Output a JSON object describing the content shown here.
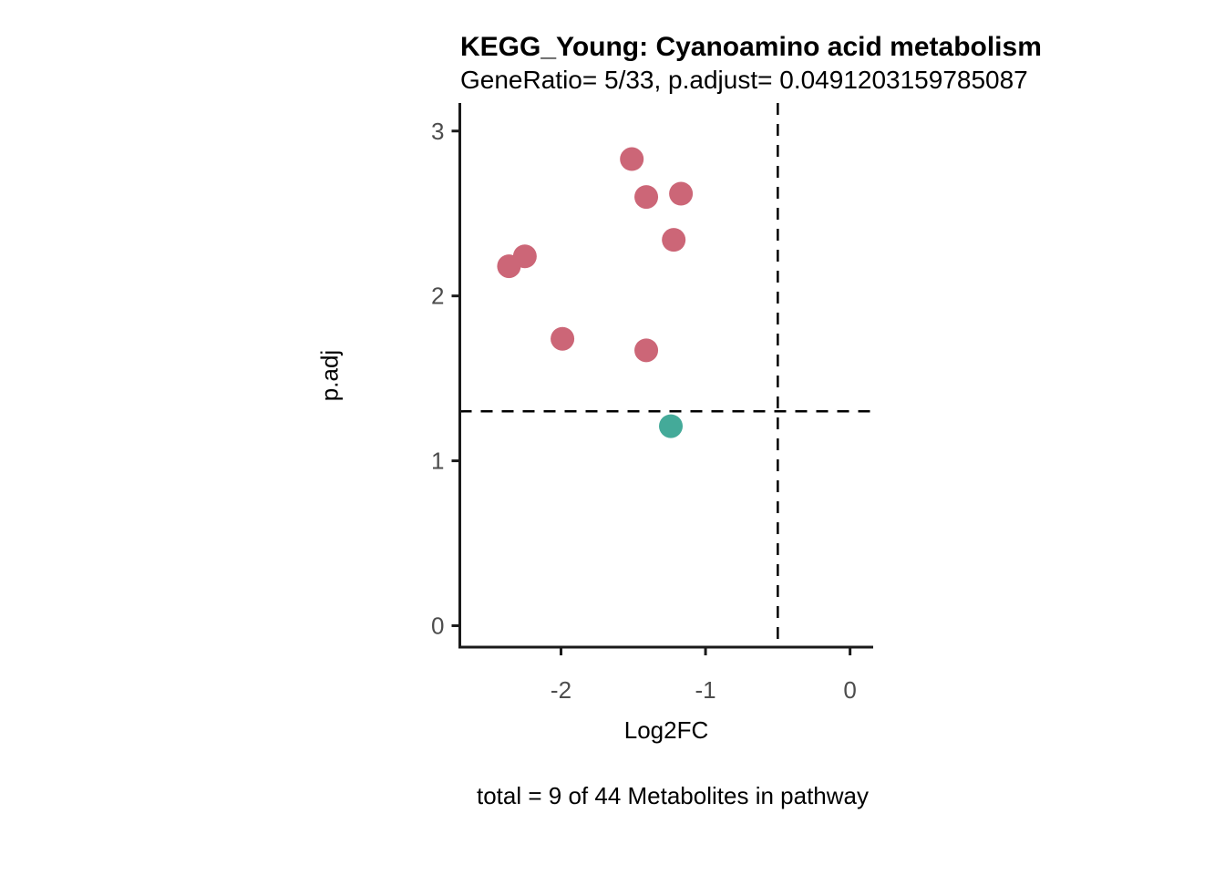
{
  "chart_data": {
    "type": "scatter",
    "title": "KEGG_Young: Cyanoamino acid metabolism",
    "subtitle": "GeneRatio= 5/33, p.adjust= 0.0491203159785087",
    "caption": "total = 9 of 44 Metabolites in pathway",
    "xlabel": "Log2FC",
    "ylabel": "p.adj",
    "xlim": [
      -2.7,
      0.16
    ],
    "ylim": [
      -0.13,
      3.17
    ],
    "x_ticks": [
      -2,
      -1,
      0
    ],
    "y_ticks": [
      0,
      1,
      2,
      3
    ],
    "grid": false,
    "legend": "none",
    "threshold_lines": {
      "style": "dashed",
      "color": "#000000",
      "vertical_x": -0.5,
      "horizontal_y": 1.3
    },
    "series": [
      {
        "name": "rose-points",
        "color": "#CC6677",
        "points": [
          {
            "x": -1.51,
            "y": 2.83
          },
          {
            "x": -1.41,
            "y": 2.6
          },
          {
            "x": -1.17,
            "y": 2.62
          },
          {
            "x": -1.22,
            "y": 2.34
          },
          {
            "x": -2.25,
            "y": 2.24
          },
          {
            "x": -2.36,
            "y": 2.18
          },
          {
            "x": -1.99,
            "y": 1.74
          },
          {
            "x": -1.41,
            "y": 1.67
          }
        ]
      },
      {
        "name": "teal-points",
        "color": "#44AA99",
        "points": [
          {
            "x": -1.24,
            "y": 1.21
          }
        ]
      }
    ],
    "style": {
      "axis_color": "#1a1a1a",
      "tick_label_color": "#4d4d4d",
      "point_radius_px": 13
    }
  }
}
